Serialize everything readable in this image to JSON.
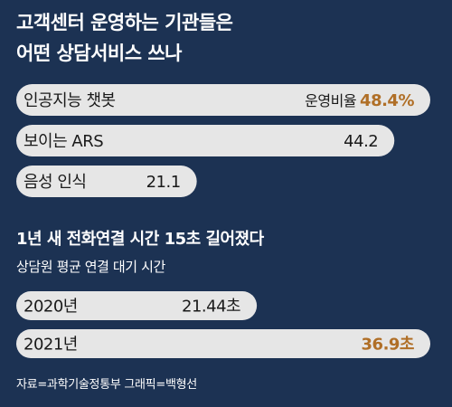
{
  "title_lines": [
    "고객센터 운영하는 기관들은",
    "어떤 상담서비스 쓰나"
  ],
  "section2_title": "1년 새 전화연결 시간 15초 길어졌다",
  "section2_subtitle": "상담원 평균 연결 대기 시간",
  "source": "자료=과학기술정통부 그래픽=백형선",
  "colors": {
    "background": "#1c3253",
    "bar": "#e6e6e6",
    "highlight": "#b06f27",
    "bar_text": "#1a1a1a"
  },
  "chart_data": [
    {
      "type": "bar",
      "orientation": "horizontal",
      "title": "고객센터 운영하는 기관들은 어떤 상담서비스 쓰나",
      "categories": [
        "인공지능 챗봇",
        "보이는 ARS",
        "음성 인식"
      ],
      "values": [
        48.4,
        44.2,
        21.1
      ],
      "value_labels": [
        "48.4%",
        "44.2",
        "21.1"
      ],
      "annotation": "운영비율",
      "highlight_index": 0
    },
    {
      "type": "bar",
      "orientation": "horizontal",
      "title": "1년 새 전화연결 시간 15초 길어졌다",
      "subtitle": "상담원 평균 연결 대기 시간",
      "categories": [
        "2020년",
        "2021년"
      ],
      "values": [
        21.44,
        36.9
      ],
      "value_labels": [
        "21.44초",
        "36.9초"
      ],
      "highlight_index": 1
    }
  ]
}
